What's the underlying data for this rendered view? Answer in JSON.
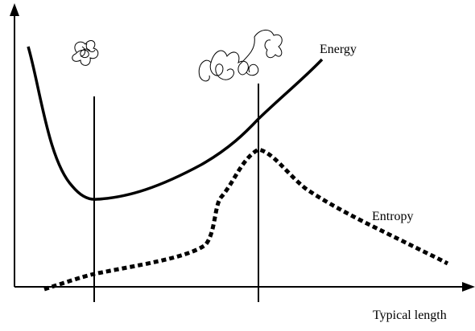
{
  "labels": {
    "energy": "Energy",
    "entropy": "Entropy",
    "x_axis": "Typical length"
  }
}
